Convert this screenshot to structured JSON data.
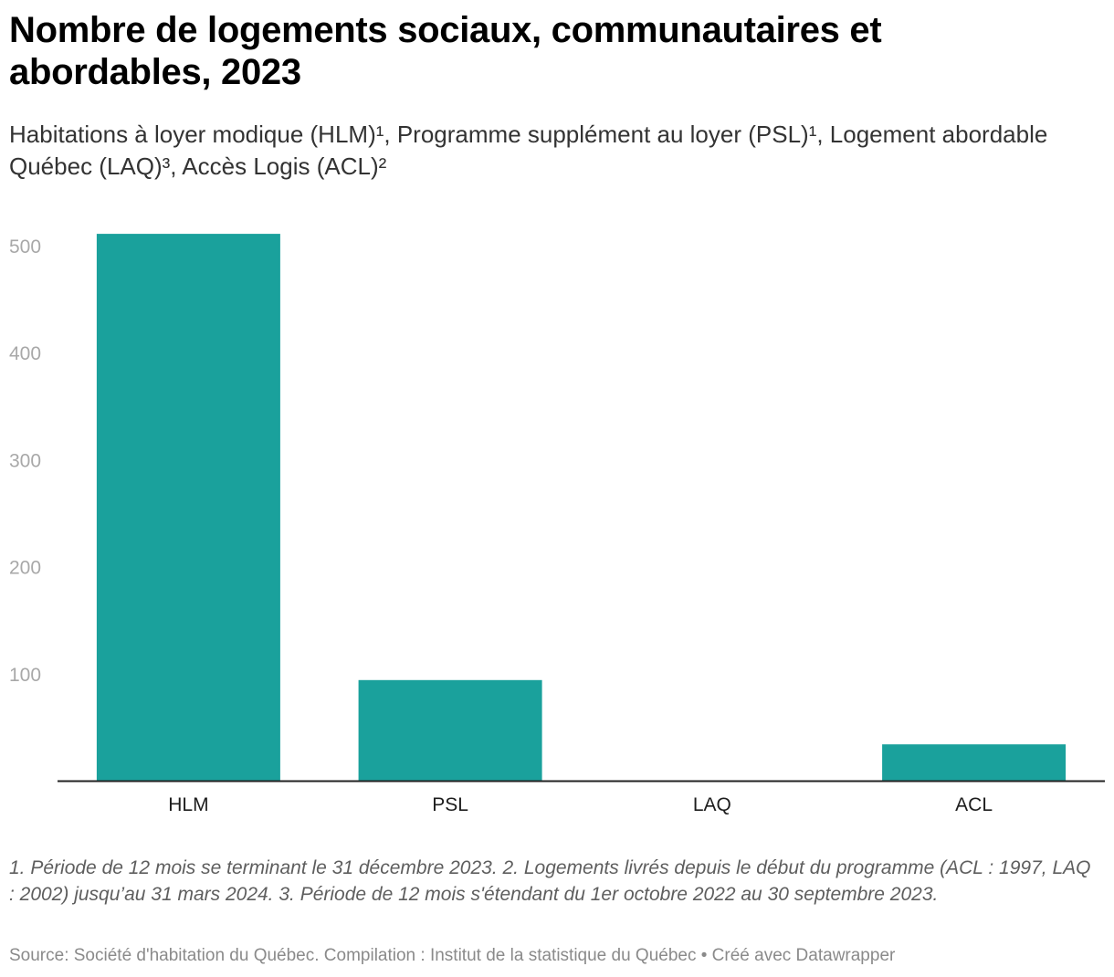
{
  "header": {
    "title": "Nombre de logements sociaux, communautaires et abordables, 2023",
    "subtitle": "Habitations à loyer modique (HLM)¹, Programme supplément au loyer (PSL)¹, Logement abordable Québec (LAQ)³, Accès Logis (ACL)²"
  },
  "chart_data": {
    "type": "bar",
    "categories": [
      "HLM",
      "PSL",
      "LAQ",
      "ACL"
    ],
    "values": [
      511,
      94,
      0,
      34
    ],
    "ylim": [
      0,
      530
    ],
    "yticks": [
      100,
      200,
      300,
      400,
      500
    ],
    "grid": false,
    "bar_color": "#1aa19c"
  },
  "footer": {
    "notes": "1. Période de 12 mois se terminant le 31 décembre 2023. 2. Logements livrés depuis le début du programme (ACL : 1997, LAQ : 2002) jusqu’au 31 mars 2024. 3. Période de 12 mois s'étendant du 1er octobre 2022 au 30 septembre 2023.",
    "source": "Source: Société d'habitation du Québec. Compilation : Institut de la statistique du Québec • Créé avec Datawrapper"
  }
}
